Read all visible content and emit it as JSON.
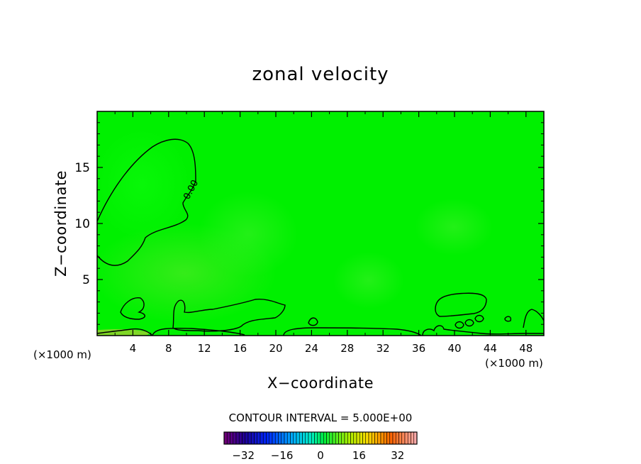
{
  "chart_data": {
    "type": "heatmap",
    "title": "zonal velocity",
    "xlabel": "X−coordinate",
    "ylabel": "Z−coordinate",
    "x_unit_left": "(×1000 m)",
    "x_unit_right": "(×1000 m)",
    "xlim": [
      0,
      50
    ],
    "ylim": [
      0,
      20
    ],
    "xticks": [
      4,
      8,
      12,
      16,
      20,
      24,
      28,
      32,
      36,
      40,
      44,
      48
    ],
    "yticks": [
      5,
      10,
      15
    ],
    "contour_interval_text": "CONTOUR INTERVAL = 5.000E+00",
    "contour_label": "0.00",
    "colorbar": {
      "range": [
        -40,
        40
      ],
      "ticks": [
        "−32",
        "−16",
        "0",
        "16",
        "32"
      ],
      "tick_values": [
        -32,
        -16,
        0,
        16,
        32
      ],
      "colormap": "rainbow"
    },
    "field_color": "#00f000",
    "grid": false
  }
}
